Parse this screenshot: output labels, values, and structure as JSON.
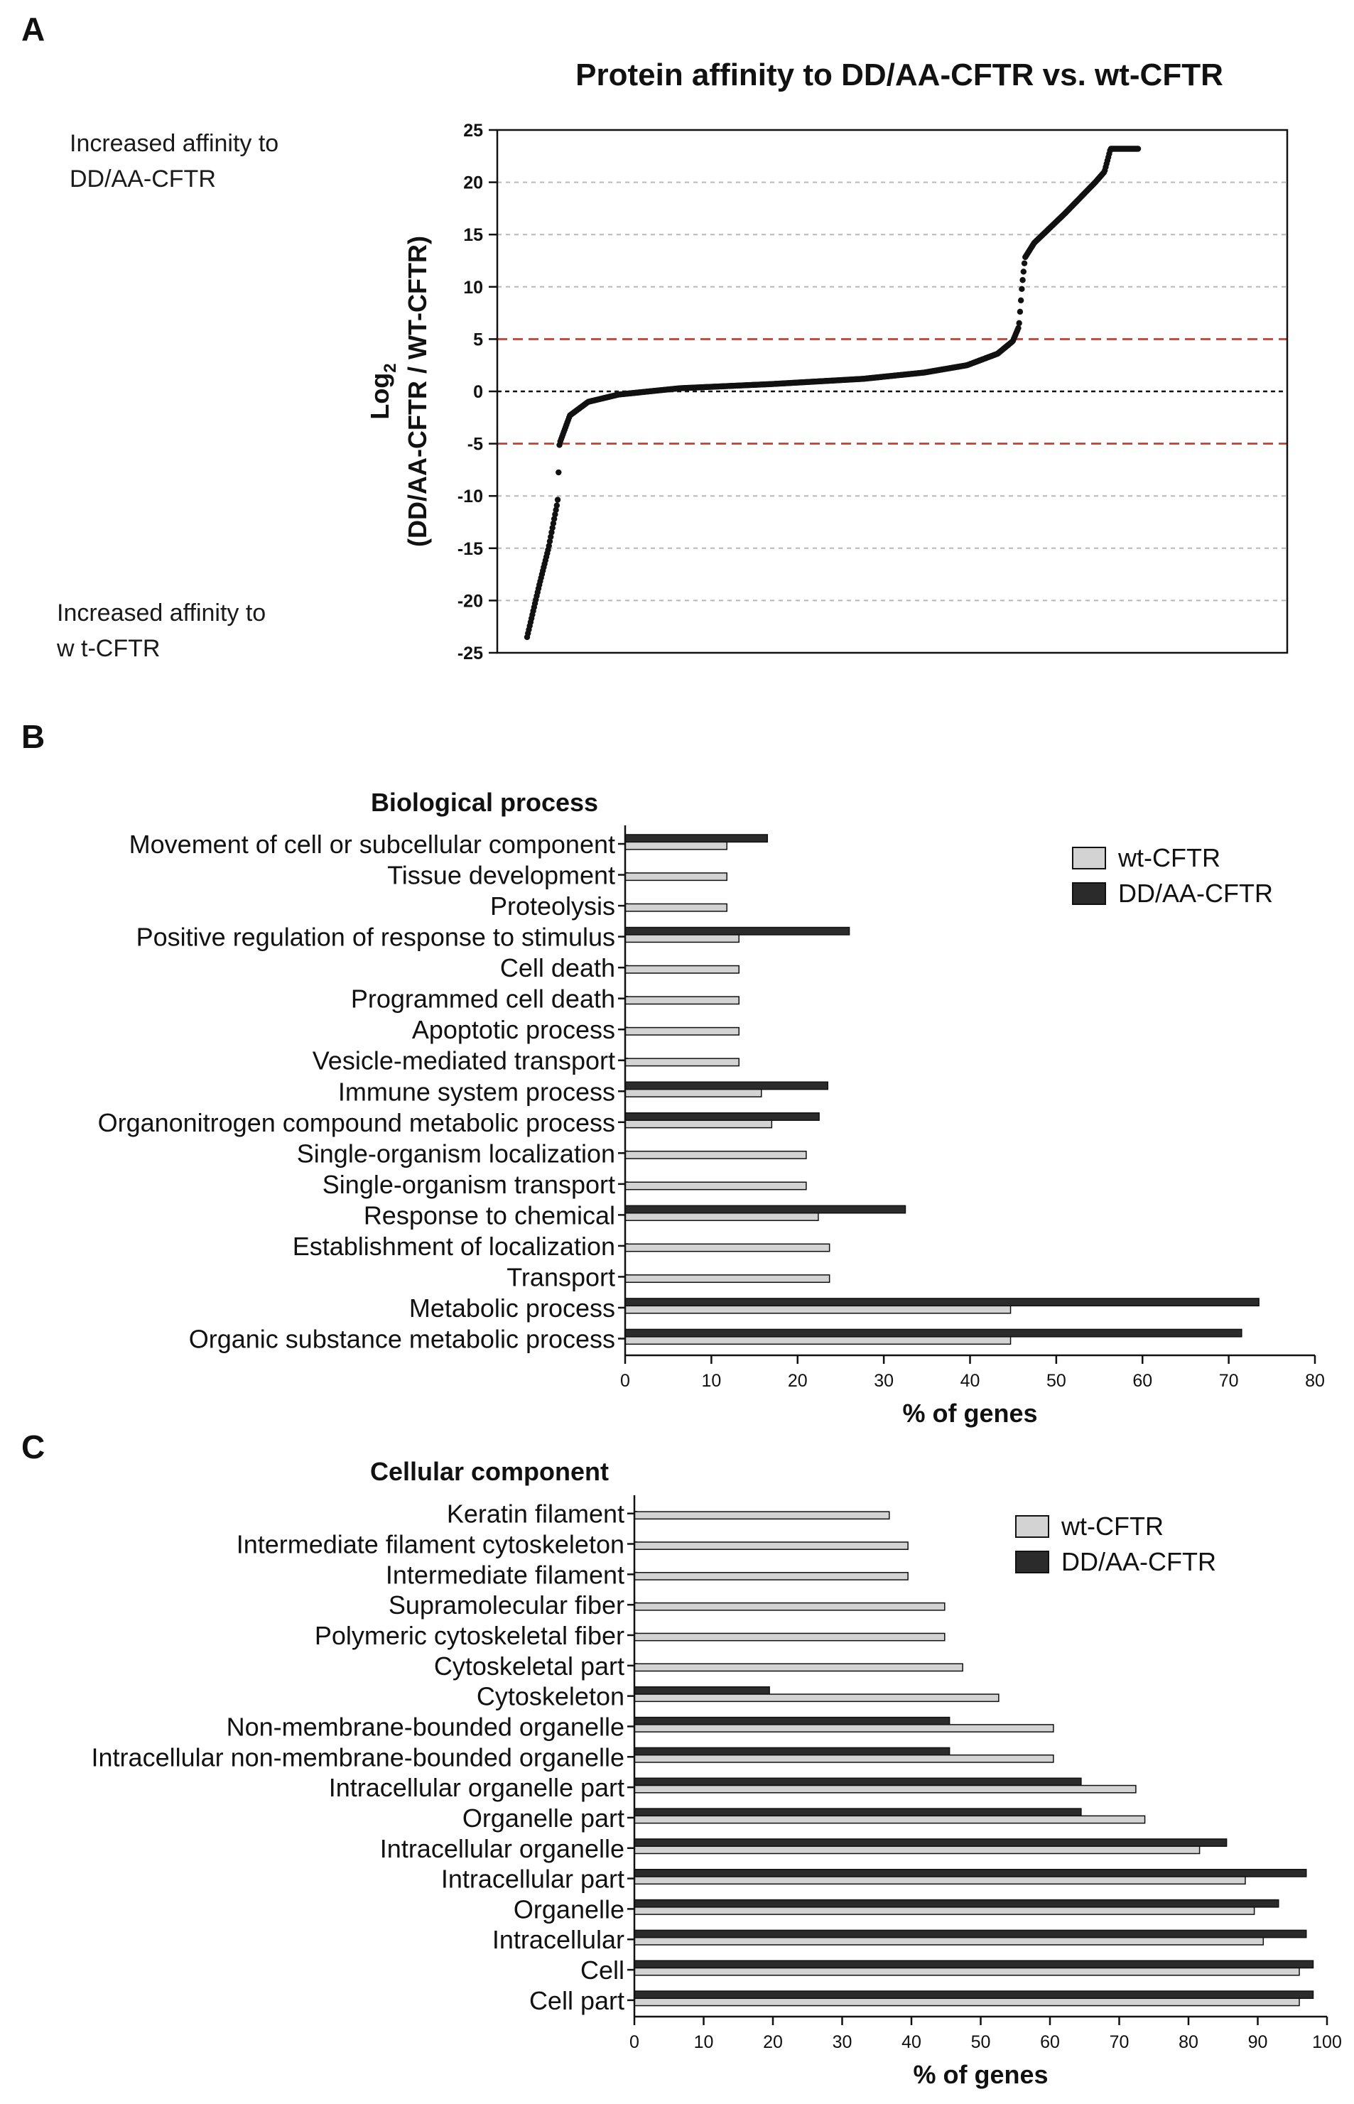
{
  "panel_labels": [
    "A",
    "B",
    "C"
  ],
  "annotations": {
    "top_line1": "Increased affinity  to",
    "top_line2": "DD/AA-CFTR",
    "bottom_line1": "Increased affinity  to",
    "bottom_line2": "w t-CFTR"
  },
  "chart_data": [
    {
      "type": "scatter",
      "title": "Protein affinity to DD/AA-CFTR vs. wt-CFTR",
      "ylabel_main": "Log",
      "ylabel_sub": "2",
      "ylabel_line2": "(DD/AA-CFTR / WT-CFTR)",
      "xlabel": "",
      "ylim": [
        -25,
        25
      ],
      "yticks": [
        25,
        20,
        15,
        10,
        5,
        0,
        -5,
        -10,
        -15,
        -20,
        -25
      ],
      "grid_lines": [
        20,
        15,
        10,
        -10,
        -15,
        -20
      ],
      "zero_line": 0,
      "threshold_lines": [
        5,
        -5
      ],
      "threshold_color": "#c0392b",
      "n_points": 700,
      "curve_knots": [
        [
          0,
          -23.5
        ],
        [
          0.01,
          -21
        ],
        [
          0.02,
          -18.5
        ],
        [
          0.035,
          -15
        ],
        [
          0.05,
          -10.5
        ],
        [
          0.053,
          -5
        ],
        [
          0.07,
          -2.3
        ],
        [
          0.1,
          -1
        ],
        [
          0.15,
          -0.3
        ],
        [
          0.25,
          0.3
        ],
        [
          0.4,
          0.7
        ],
        [
          0.55,
          1.2
        ],
        [
          0.65,
          1.8
        ],
        [
          0.72,
          2.5
        ],
        [
          0.77,
          3.6
        ],
        [
          0.795,
          4.8
        ],
        [
          0.805,
          6.2
        ],
        [
          0.81,
          10
        ],
        [
          0.815,
          12.8
        ],
        [
          0.83,
          14.2
        ],
        [
          0.88,
          17
        ],
        [
          0.93,
          20
        ],
        [
          0.945,
          21
        ],
        [
          0.955,
          23.2
        ]
      ]
    },
    {
      "type": "bar",
      "orientation": "horizontal",
      "title": "Biological process",
      "xlabel": "% of genes",
      "xlim": [
        0,
        80
      ],
      "xticks": [
        0,
        10,
        20,
        30,
        40,
        50,
        60,
        70,
        80
      ],
      "legend_position": "top-right",
      "categories": [
        "Movement of cell or subcellular component",
        "Tissue development",
        "Proteolysis",
        "Positive regulation of response to stimulus",
        "Cell death",
        "Programmed cell death",
        "Apoptotic process",
        "Vesicle-mediated transport",
        "Immune system process",
        "Organonitrogen compound metabolic process",
        "Single-organism localization",
        "Single-organism transport",
        "Response to chemical",
        "Establishment of localization",
        "Transport",
        "Metabolic process",
        "Organic substance metabolic process"
      ],
      "series": [
        {
          "name": "DD/AA-CFTR",
          "color": "#2b2b2b",
          "values": [
            16.5,
            0,
            0,
            26,
            0,
            0,
            0,
            0,
            23.5,
            22.5,
            0,
            0,
            32.5,
            0,
            0,
            73.5,
            71.5
          ]
        },
        {
          "name": "wt-CFTR",
          "color": "#d3d3d3",
          "values": [
            11.8,
            11.8,
            11.8,
            13.2,
            13.2,
            13.2,
            13.2,
            13.2,
            15.8,
            17,
            21,
            21,
            22.4,
            23.7,
            23.7,
            44.7,
            44.7
          ]
        }
      ]
    },
    {
      "type": "bar",
      "orientation": "horizontal",
      "title": "Cellular component",
      "xlabel": "% of genes",
      "xlim": [
        0,
        100
      ],
      "xticks": [
        0,
        10,
        20,
        30,
        40,
        50,
        60,
        70,
        80,
        90,
        100
      ],
      "legend_position": "top-right",
      "categories": [
        "Keratin filament",
        "Intermediate filament cytoskeleton",
        "Intermediate filament",
        "Supramolecular fiber",
        "Polymeric cytoskeletal fiber",
        "Cytoskeletal part",
        "Cytoskeleton",
        "Non-membrane-bounded organelle",
        "Intracellular non-membrane-bounded organelle",
        "Intracellular organelle part",
        "Organelle part",
        "Intracellular organelle",
        "Intracellular part",
        "Organelle",
        "Intracellular",
        "Cell",
        "Cell part"
      ],
      "series": [
        {
          "name": "DD/AA-CFTR",
          "color": "#2b2b2b",
          "values": [
            0,
            0,
            0,
            0,
            0,
            0,
            19.5,
            45.5,
            45.5,
            64.5,
            64.5,
            85.5,
            97,
            93,
            97,
            98,
            98
          ]
        },
        {
          "name": "wt-CFTR",
          "color": "#d3d3d3",
          "values": [
            36.8,
            39.5,
            39.5,
            44.8,
            44.8,
            47.4,
            52.6,
            60.5,
            60.5,
            72.4,
            73.7,
            81.6,
            88.2,
            89.5,
            90.8,
            96,
            96
          ]
        }
      ]
    }
  ]
}
